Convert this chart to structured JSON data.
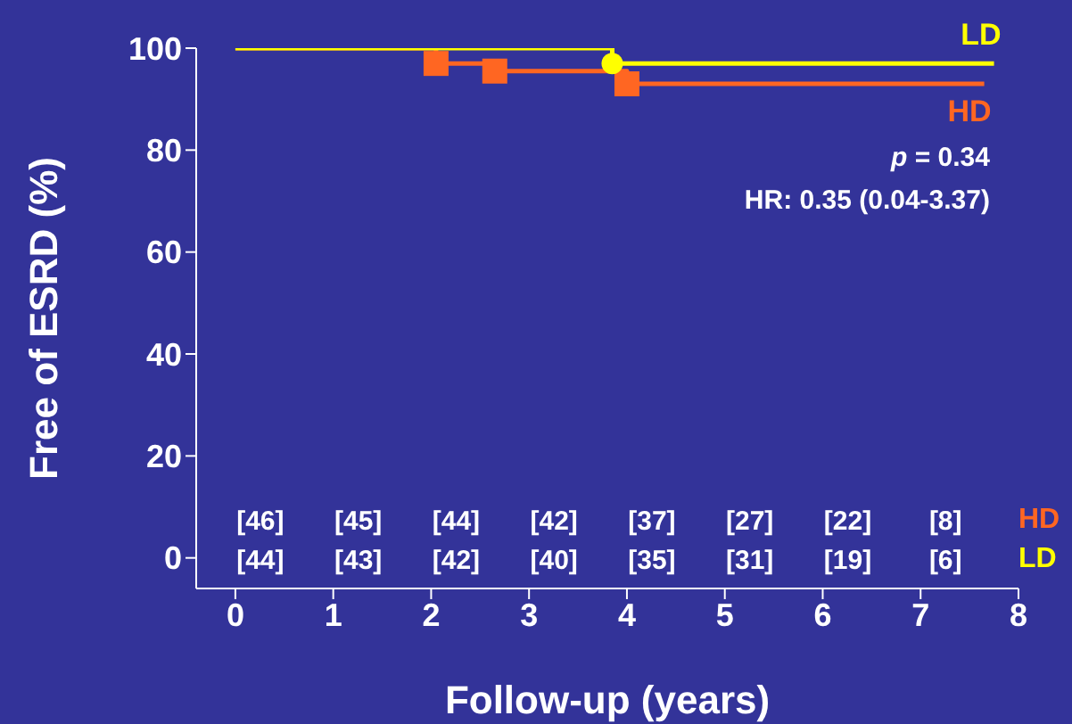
{
  "chart_data": {
    "type": "step",
    "xlabel": "Follow-up (years)",
    "ylabel": "Free of ESRD (%)",
    "xlim": [
      -0.4,
      8
    ],
    "ylim": [
      -6,
      100
    ],
    "xticks": [
      0,
      1,
      2,
      3,
      4,
      5,
      6,
      7,
      8
    ],
    "yticks": [
      0,
      20,
      40,
      60,
      80,
      100
    ],
    "marker": "none",
    "series": [
      {
        "name": "LD",
        "color": "#ffff00",
        "x": [
          0,
          3.85,
          7.75
        ],
        "values": [
          100,
          97,
          97
        ]
      },
      {
        "name": "HD",
        "color": "#ff6622",
        "x": [
          0,
          2.05,
          2.65,
          4.0,
          7.65
        ],
        "values": [
          100,
          97,
          95.5,
          93,
          93
        ]
      },
      {
        "type": "scatter",
        "color": "#ffff00",
        "marker": "circle",
        "x": [
          3.85
        ],
        "values": [
          97
        ]
      },
      {
        "type": "scatter",
        "color": "#ff6622",
        "marker": "square",
        "x": [
          2.05,
          2.65,
          4.0
        ],
        "values": [
          97,
          95.5,
          93
        ]
      }
    ],
    "annotations": [
      "p = 0.34",
      "HR: 0.35 (0.04-3.37)",
      "[46]",
      "[45]",
      "[44]",
      "[42]",
      "[37]",
      "[27]",
      "[22]",
      "[8]",
      "[44]",
      "[43]",
      "[42]",
      "[40]",
      "[35]",
      "[31]",
      "[19]",
      "[6]"
    ]
  }
}
